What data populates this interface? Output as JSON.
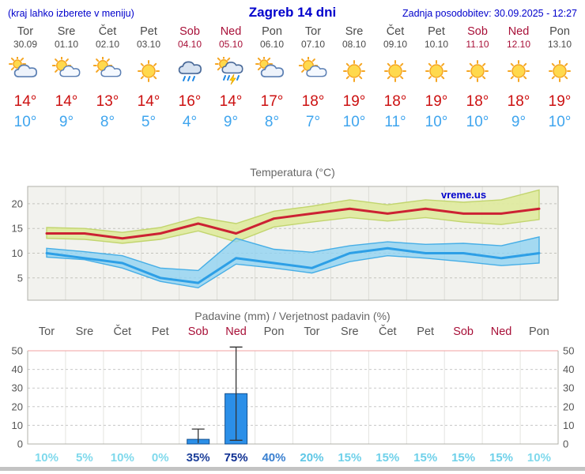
{
  "header": {
    "left_note": "(kraj lahko izberete v meniju)",
    "title": "Zagreb 14 dni",
    "updated": "Zadnja posodobitev: 30.09.2025 - 12:27"
  },
  "colors": {
    "accent_blue": "#0000cc",
    "weekend_red": "#a81038",
    "tmax_red": "#cc1111",
    "tmin_blue": "#3fa5ee",
    "bar_blue": "#2b8fe8"
  },
  "forecast": {
    "days": [
      {
        "name": "Tor",
        "date": "30.09",
        "weekend": false,
        "icon": "cloud-sun",
        "tmax": "14°",
        "tmin": "10°"
      },
      {
        "name": "Sre",
        "date": "01.10",
        "weekend": false,
        "icon": "sun-cloud",
        "tmax": "14°",
        "tmin": "9°"
      },
      {
        "name": "Čet",
        "date": "02.10",
        "weekend": false,
        "icon": "sun-cloud",
        "tmax": "13°",
        "tmin": "8°"
      },
      {
        "name": "Pet",
        "date": "03.10",
        "weekend": false,
        "icon": "sun",
        "tmax": "14°",
        "tmin": "5°"
      },
      {
        "name": "Sob",
        "date": "04.10",
        "weekend": true,
        "icon": "rain",
        "tmax": "16°",
        "tmin": "4°"
      },
      {
        "name": "Ned",
        "date": "05.10",
        "weekend": true,
        "icon": "rain-sun",
        "tmax": "14°",
        "tmin": "9°"
      },
      {
        "name": "Pon",
        "date": "06.10",
        "weekend": false,
        "icon": "cloud-sun",
        "tmax": "17°",
        "tmin": "8°"
      },
      {
        "name": "Tor",
        "date": "07.10",
        "weekend": false,
        "icon": "sun-cloud",
        "tmax": "18°",
        "tmin": "7°"
      },
      {
        "name": "Sre",
        "date": "08.10",
        "weekend": false,
        "icon": "sun",
        "tmax": "19°",
        "tmin": "10°"
      },
      {
        "name": "Čet",
        "date": "09.10",
        "weekend": false,
        "icon": "sun",
        "tmax": "18°",
        "tmin": "11°"
      },
      {
        "name": "Pet",
        "date": "10.10",
        "weekend": false,
        "icon": "sun",
        "tmax": "19°",
        "tmin": "10°"
      },
      {
        "name": "Sob",
        "date": "11.10",
        "weekend": true,
        "icon": "sun",
        "tmax": "18°",
        "tmin": "10°"
      },
      {
        "name": "Ned",
        "date": "12.10",
        "weekend": true,
        "icon": "sun",
        "tmax": "18°",
        "tmin": "9°"
      },
      {
        "name": "Pon",
        "date": "13.10",
        "weekend": false,
        "icon": "sun",
        "tmax": "19°",
        "tmin": "10°"
      }
    ]
  },
  "chart_data": [
    {
      "type": "line",
      "title": "Temperatura (°C)",
      "watermark": "vreme.us",
      "categories": [
        "Tor",
        "Sre",
        "Čet",
        "Pet",
        "Sob",
        "Ned",
        "Pon",
        "Tor",
        "Sre",
        "Čet",
        "Pet",
        "Sob",
        "Ned",
        "Pon"
      ],
      "ylim": [
        0.5,
        23.5
      ],
      "yticks": [
        5,
        10,
        15,
        20
      ],
      "grid": true,
      "legend_position": "none",
      "series": [
        {
          "name": "tmax",
          "color": "#cc2233",
          "values": [
            14,
            14,
            13,
            14,
            16,
            14,
            17,
            18,
            19,
            18,
            19,
            18,
            18,
            19
          ]
        },
        {
          "name": "tmin",
          "color": "#2d9fe6",
          "values": [
            10,
            9,
            8,
            5,
            4,
            9,
            8,
            7,
            10,
            11,
            10,
            10,
            9,
            10
          ]
        },
        {
          "name": "tmax_band_upper",
          "color": "#dfeaa0",
          "values": [
            15.2,
            15,
            14.2,
            15.2,
            17.3,
            16,
            18.5,
            19.5,
            20.8,
            19.8,
            20.8,
            20.3,
            20.8,
            22.8
          ]
        },
        {
          "name": "tmax_band_lower",
          "color": "#dfeaa0",
          "values": [
            13,
            12.8,
            12,
            12.8,
            14.5,
            12.3,
            15.3,
            16.3,
            17.2,
            16.5,
            17.2,
            16.3,
            15.8,
            16.8
          ]
        },
        {
          "name": "tmin_band_upper",
          "color": "#8ed2f2",
          "values": [
            11,
            10.3,
            9.5,
            7,
            6.5,
            13,
            10.8,
            10.2,
            11.5,
            12.3,
            11.8,
            12,
            11.5,
            13.3
          ]
        },
        {
          "name": "tmin_band_lower",
          "color": "#8ed2f2",
          "values": [
            9.2,
            8.7,
            7,
            4.3,
            3,
            7.8,
            7,
            6,
            8.3,
            9.5,
            9,
            8.3,
            7.5,
            8
          ]
        }
      ]
    },
    {
      "type": "bar",
      "title": "Padavine (mm) / Verjetnost padavin (%)",
      "categories": [
        "Tor",
        "Sre",
        "Čet",
        "Pet",
        "Sob",
        "Ned",
        "Pon",
        "Tor",
        "Sre",
        "Čet",
        "Pet",
        "Sob",
        "Ned",
        "Pon"
      ],
      "weekend": [
        false,
        false,
        false,
        false,
        true,
        true,
        false,
        false,
        false,
        false,
        false,
        true,
        true,
        false
      ],
      "ylim": [
        0,
        50
      ],
      "yticks": [
        0,
        10,
        20,
        30,
        40,
        50
      ],
      "values": [
        0,
        0,
        0,
        0,
        2.5,
        27,
        0,
        0,
        0,
        0,
        0,
        0,
        0,
        0
      ],
      "whisker_low": [
        0,
        0,
        0,
        0,
        0.5,
        2,
        0,
        0,
        0,
        0,
        0,
        0,
        0,
        0
      ],
      "whisker_high": [
        0,
        0,
        0,
        0,
        8,
        52,
        0,
        0,
        0,
        0,
        0,
        0,
        0,
        0
      ],
      "bar_color": "#2b8fe8",
      "pop": [
        {
          "label": "10%",
          "color": "#7fd9ec"
        },
        {
          "label": "5%",
          "color": "#7fd9ec"
        },
        {
          "label": "10%",
          "color": "#7fd9ec"
        },
        {
          "label": "0%",
          "color": "#7fd9ec"
        },
        {
          "label": "35%",
          "color": "#1c3f9a"
        },
        {
          "label": "75%",
          "color": "#0e2f92"
        },
        {
          "label": "40%",
          "color": "#3a80d0"
        },
        {
          "label": "20%",
          "color": "#5ec7e6"
        },
        {
          "label": "15%",
          "color": "#6fd1ea"
        },
        {
          "label": "15%",
          "color": "#6fd1ea"
        },
        {
          "label": "15%",
          "color": "#6fd1ea"
        },
        {
          "label": "15%",
          "color": "#6fd1ea"
        },
        {
          "label": "15%",
          "color": "#6fd1ea"
        },
        {
          "label": "10%",
          "color": "#7fd9ec"
        }
      ]
    }
  ]
}
